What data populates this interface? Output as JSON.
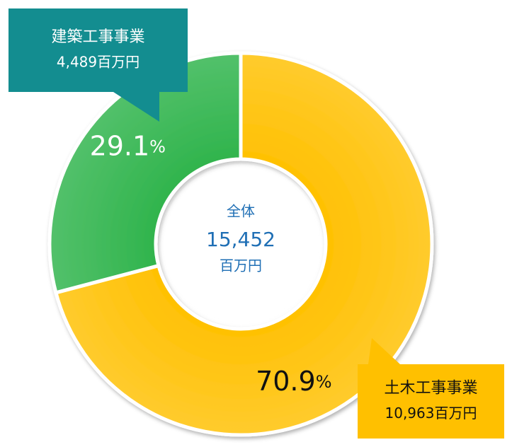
{
  "chart_data": {
    "type": "pie",
    "categories": [
      "土木工事事業",
      "建築工事事業"
    ],
    "values": [
      70.9,
      29.1
    ],
    "value_labels": [
      "70.9%",
      "29.1%"
    ],
    "colors": [
      "#ffc000",
      "#2db34a"
    ],
    "amount_labels": [
      "10,963百万円",
      "4,489百万円"
    ],
    "callout_colors": [
      "#ffc000",
      "#138d90"
    ],
    "center": {
      "label": "全体",
      "total": "15,452",
      "unit": "百万円"
    }
  }
}
